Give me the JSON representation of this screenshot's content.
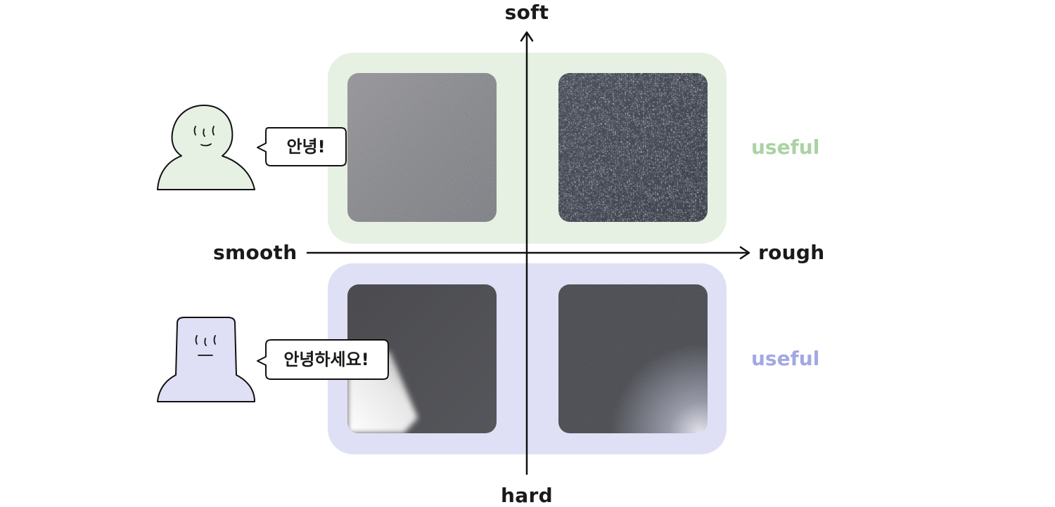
{
  "axes": {
    "top": "soft",
    "bottom": "hard",
    "left": "smooth",
    "right": "rough"
  },
  "quadrants": {
    "top": {
      "label": "useful",
      "color": "#a9d3a2",
      "background": "#e6f0e3"
    },
    "bottom": {
      "label": "useful",
      "color": "#a2a8e4",
      "background": "#dfe0f5"
    }
  },
  "characters": {
    "top": {
      "speech": "안녕!",
      "fill": "#e6f0e3"
    },
    "bottom": {
      "speech": "안녕하세요!",
      "fill": "#dfe0f5"
    }
  },
  "swatches": [
    {
      "name": "soft-smooth-fabric"
    },
    {
      "name": "soft-rough-fabric"
    },
    {
      "name": "hard-smooth-surface"
    },
    {
      "name": "hard-rough-surface"
    }
  ]
}
